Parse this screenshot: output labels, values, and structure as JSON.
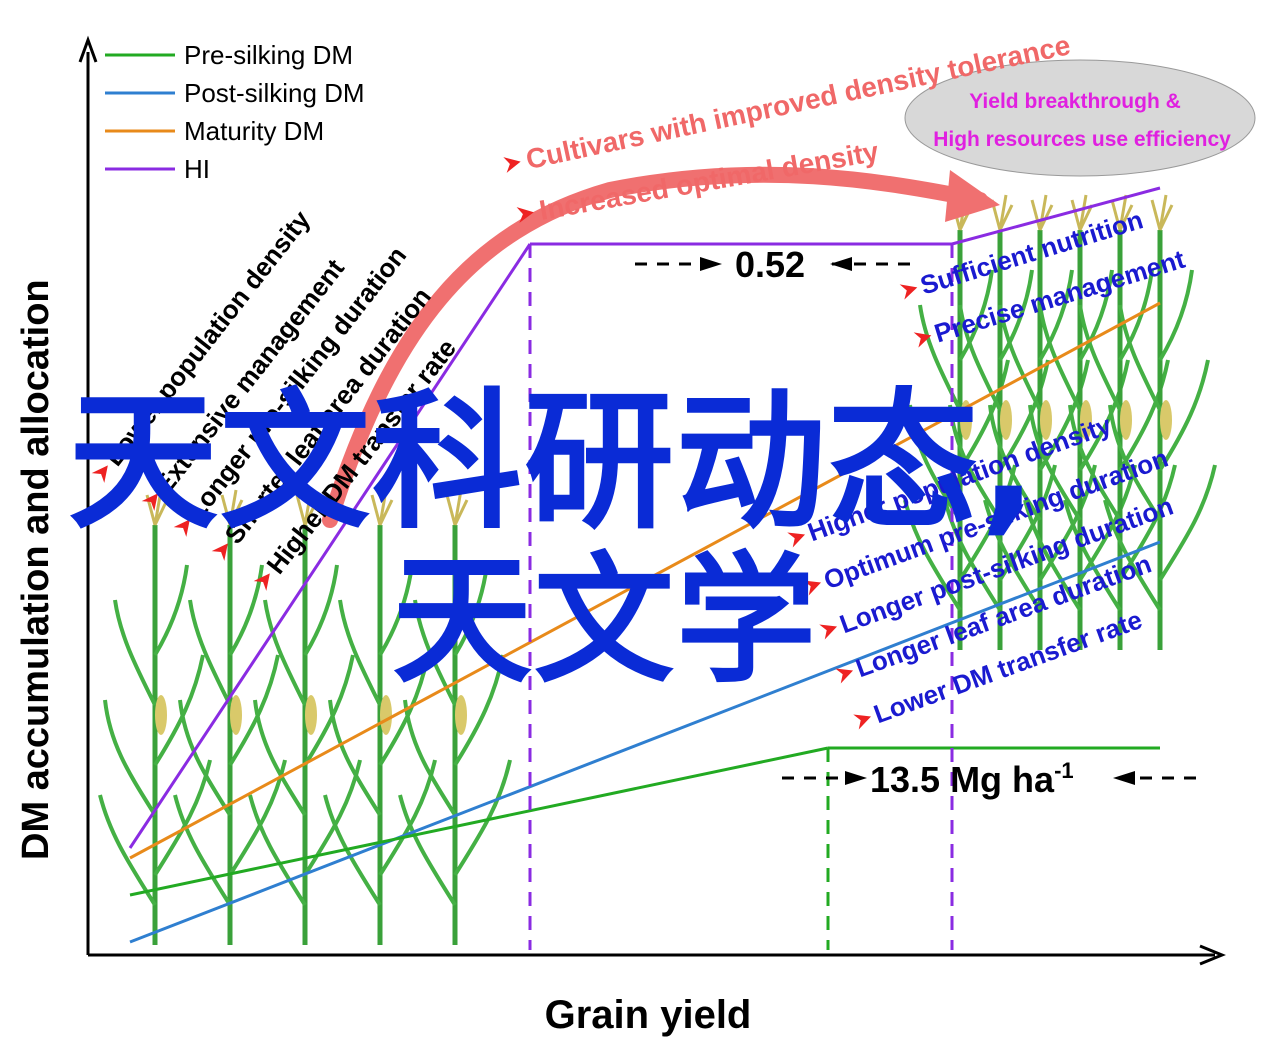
{
  "axes": {
    "ylabel": "DM accumulation and allocation",
    "xlabel": "Grain yield"
  },
  "legend": [
    {
      "label": "Pre-silking DM",
      "color": "#22aa22"
    },
    {
      "label": "Post-silking DM",
      "color": "#2f7fd0"
    },
    {
      "label": "Maturity DM",
      "color": "#e88a1a"
    },
    {
      "label": "HI",
      "color": "#8a2be2"
    }
  ],
  "top_annotations": {
    "curve1": "Cultivars with improved density tolerance",
    "curve2": "Increased optimal density",
    "ellipse_line1": "Yield breakthrough &",
    "ellipse_line2": "High resources use efficiency",
    "hi_value": "0.52",
    "yield_value": "13.5 Mg ha",
    "yield_sup": "-1"
  },
  "left_labels": [
    "Lower population density",
    "Extensive management",
    "Longer pre-silking duration",
    "Shorter leaf area duration",
    "Higher DM transfer rate"
  ],
  "right_labels_top": [
    "Sufficient nutrition",
    "Precise management"
  ],
  "right_labels_bottom": [
    "Higher population density",
    "Optimum pre-silking duration",
    "Longer  post-silking duration",
    "Longer leaf area duration",
    "Lower DM transfer rate"
  ],
  "watermark": {
    "line1": "天文科研动态,",
    "line2": "天文学"
  },
  "colors": {
    "arrow_red": "#ee2222",
    "big_arrow": "#f07070",
    "right_text": "#1a1ad0",
    "ellipse_fill": "#d8d8d8",
    "ellipse_text": "#e020e0",
    "watermark": "#0a2bd6"
  }
}
